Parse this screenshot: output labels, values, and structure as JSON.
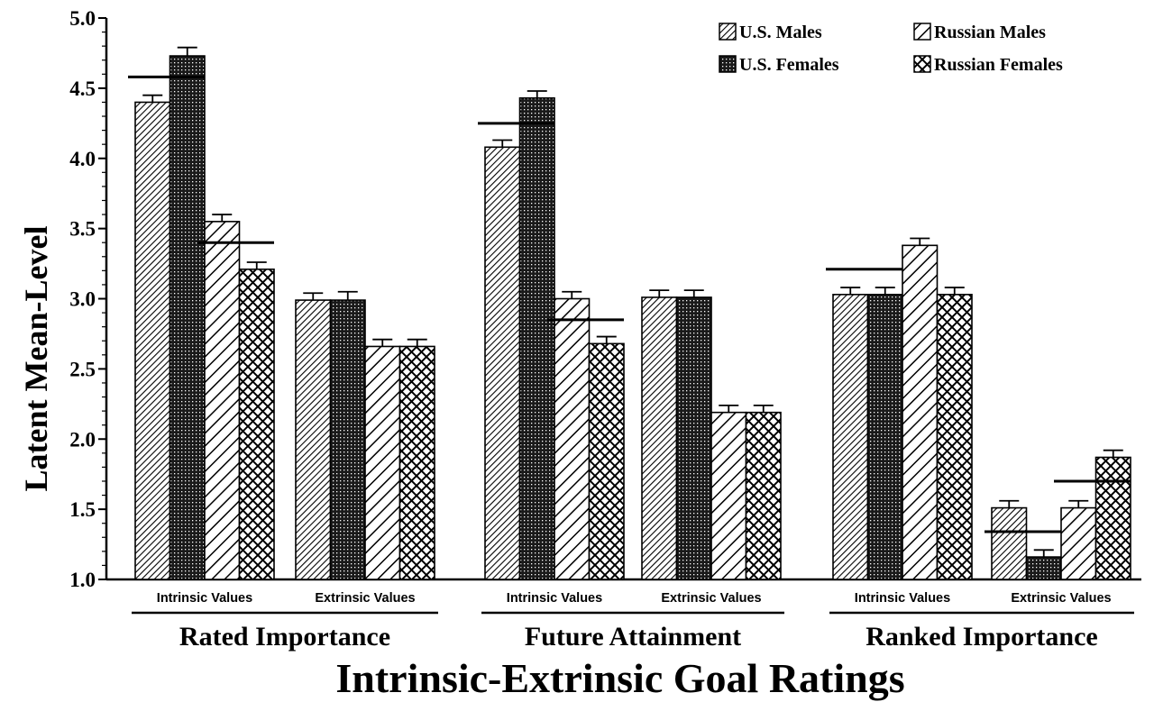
{
  "chart_data": {
    "type": "bar",
    "title": "",
    "xlabel": "Intrinsic-Extrinsic Goal Ratings",
    "ylabel": "Latent Mean-Level",
    "ylim": [
      1.0,
      5.0
    ],
    "yticks": [
      "1.0",
      "1.5",
      "2.0",
      "2.5",
      "3.0",
      "3.5",
      "4.0",
      "4.5",
      "5.0"
    ],
    "legend_position": "top-right",
    "groups": [
      {
        "label": "Rated Importance",
        "subgroups": [
          {
            "label": "Intrinsic Values",
            "values": [
              4.4,
              4.73,
              3.55,
              3.21
            ],
            "errors": [
              0.05,
              0.06,
              0.05,
              0.05
            ],
            "line_levels": [
              4.58,
              3.4
            ]
          },
          {
            "label": "Extrinsic Values",
            "values": [
              2.99,
              2.99,
              2.66,
              2.66
            ],
            "errors": [
              0.05,
              0.06,
              0.05,
              0.05
            ]
          }
        ]
      },
      {
        "label": "Future Attainment",
        "subgroups": [
          {
            "label": "Intrinsic Values",
            "values": [
              4.08,
              4.43,
              3.0,
              2.68
            ],
            "errors": [
              0.05,
              0.05,
              0.05,
              0.05
            ],
            "line_levels": [
              4.25,
              2.85
            ]
          },
          {
            "label": "Extrinsic Values",
            "values": [
              3.01,
              3.01,
              2.19,
              2.19
            ],
            "errors": [
              0.05,
              0.05,
              0.05,
              0.05
            ]
          }
        ]
      },
      {
        "label": "Ranked Importance",
        "subgroups": [
          {
            "label": "Intrinsic Values",
            "values": [
              3.03,
              3.03,
              3.38,
              3.03
            ],
            "errors": [
              0.05,
              0.05,
              0.05,
              0.05
            ],
            "line_levels": [
              3.21
            ]
          },
          {
            "label": "Extrinsic Values",
            "values": [
              1.51,
              1.16,
              1.51,
              1.87
            ],
            "errors": [
              0.05,
              0.05,
              0.05,
              0.05
            ],
            "line_levels": [
              1.34,
              1.7
            ]
          }
        ]
      }
    ],
    "series": [
      {
        "name": "U.S. Males",
        "pattern": "diag-fine"
      },
      {
        "name": "U.S. Females",
        "pattern": "cross-dense"
      },
      {
        "name": "Russian Males",
        "pattern": "diag-wide"
      },
      {
        "name": "Russian Females",
        "pattern": "cross-open"
      }
    ],
    "colors": {
      "ink": "#000000",
      "background": "#ffffff"
    }
  }
}
